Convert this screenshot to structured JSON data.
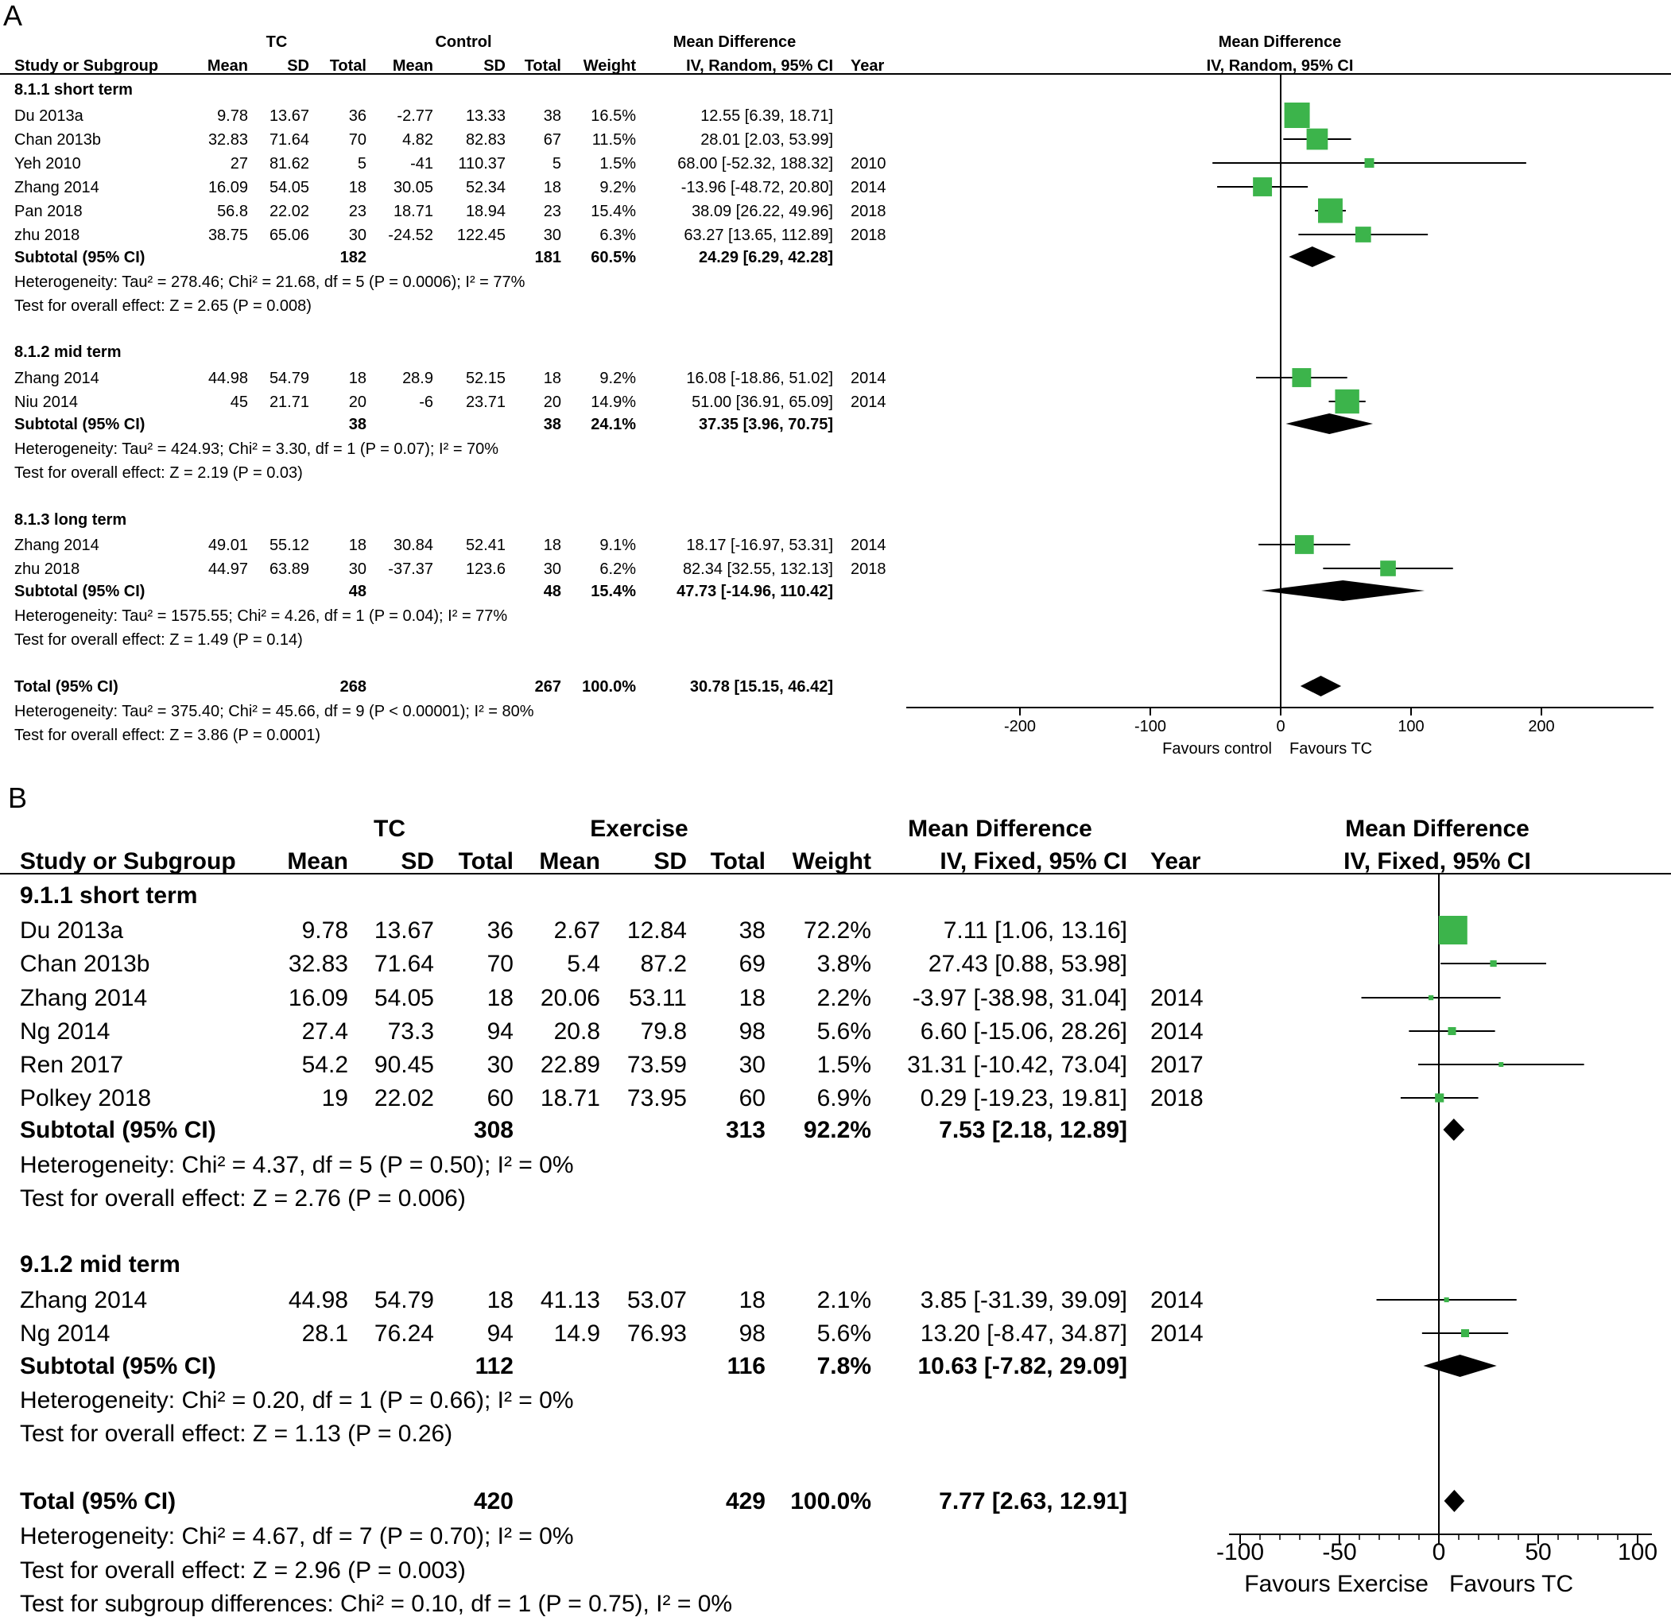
{
  "chart_data": [
    {
      "type": "forest",
      "panel_label": "A",
      "group1": "TC",
      "group2": "Control",
      "columns": [
        "Study or Subgroup",
        "Mean",
        "SD",
        "Total",
        "Mean",
        "SD",
        "Total",
        "Weight",
        "IV, Random, 95% CI",
        "Year"
      ],
      "effect_header": "Mean Difference",
      "effect_method": "IV, Random, 95% CI",
      "plot_header": "Mean Difference",
      "plot_method": "IV, Random, 95% CI",
      "xlim": [
        -288,
        285
      ],
      "ticks": [
        -200,
        -100,
        0,
        100,
        200
      ],
      "tick_labels": [
        "-200",
        "-100",
        "0",
        "100",
        "200"
      ],
      "favours_left": "Favours control",
      "favours_right": "Favours TC",
      "rows": [
        {
          "kind": "heading",
          "label": "8.1.1 short term"
        },
        {
          "kind": "study",
          "label": "Du 2013a",
          "cells": [
            "9.78",
            "13.67",
            "36",
            "-2.77",
            "13.33",
            "38",
            "16.5%",
            "12.55 [6.39, 18.71]",
            ""
          ],
          "md": 12.55,
          "lo": 6.39,
          "hi": 18.71,
          "weight": 16.5
        },
        {
          "kind": "study",
          "label": "Chan 2013b",
          "cells": [
            "32.83",
            "71.64",
            "70",
            "4.82",
            "82.83",
            "67",
            "11.5%",
            "28.01 [2.03, 53.99]",
            ""
          ],
          "md": 28.01,
          "lo": 2.03,
          "hi": 53.99,
          "weight": 11.5
        },
        {
          "kind": "study",
          "label": "Yeh 2010",
          "cells": [
            "27",
            "81.62",
            "5",
            "-41",
            "110.37",
            "5",
            "1.5%",
            "68.00 [-52.32, 188.32]",
            "2010"
          ],
          "md": 68.0,
          "lo": -52.32,
          "hi": 188.32,
          "weight": 1.5
        },
        {
          "kind": "study",
          "label": "Zhang 2014",
          "cells": [
            "16.09",
            "54.05",
            "18",
            "30.05",
            "52.34",
            "18",
            "9.2%",
            "-13.96 [-48.72, 20.80]",
            "2014"
          ],
          "md": -13.96,
          "lo": -48.72,
          "hi": 20.8,
          "weight": 9.2
        },
        {
          "kind": "study",
          "label": "Pan 2018",
          "cells": [
            "56.8",
            "22.02",
            "23",
            "18.71",
            "18.94",
            "23",
            "15.4%",
            "38.09 [26.22, 49.96]",
            "2018"
          ],
          "md": 38.09,
          "lo": 26.22,
          "hi": 49.96,
          "weight": 15.4
        },
        {
          "kind": "study",
          "label": "zhu 2018",
          "cells": [
            "38.75",
            "65.06",
            "30",
            "-24.52",
            "122.45",
            "30",
            "6.3%",
            "63.27 [13.65, 112.89]",
            "2018"
          ],
          "md": 63.27,
          "lo": 13.65,
          "hi": 112.89,
          "weight": 6.3
        },
        {
          "kind": "subtotal",
          "label": "Subtotal (95% CI)",
          "cells": [
            "",
            "",
            "182",
            "",
            "",
            "181",
            "60.5%",
            "24.29 [6.29, 42.28]",
            ""
          ],
          "md": 24.29,
          "lo": 6.29,
          "hi": 42.28
        },
        {
          "kind": "note",
          "label": "Heterogeneity: Tau² = 278.46; Chi² = 21.68, df = 5 (P = 0.0006); I² = 77%"
        },
        {
          "kind": "note",
          "label": "Test for overall effect: Z = 2.65 (P = 0.008)"
        },
        {
          "kind": "heading",
          "label": "8.1.2 mid term"
        },
        {
          "kind": "study",
          "label": "Zhang 2014",
          "cells": [
            "44.98",
            "54.79",
            "18",
            "28.9",
            "52.15",
            "18",
            "9.2%",
            "16.08 [-18.86, 51.02]",
            "2014"
          ],
          "md": 16.08,
          "lo": -18.86,
          "hi": 51.02,
          "weight": 9.2
        },
        {
          "kind": "study",
          "label": "Niu 2014",
          "cells": [
            "45",
            "21.71",
            "20",
            "-6",
            "23.71",
            "20",
            "14.9%",
            "51.00 [36.91, 65.09]",
            "2014"
          ],
          "md": 51.0,
          "lo": 36.91,
          "hi": 65.09,
          "weight": 14.9
        },
        {
          "kind": "subtotal",
          "label": "Subtotal (95% CI)",
          "cells": [
            "",
            "",
            "38",
            "",
            "",
            "38",
            "24.1%",
            "37.35 [3.96, 70.75]",
            ""
          ],
          "md": 37.35,
          "lo": 3.96,
          "hi": 70.75
        },
        {
          "kind": "note",
          "label": "Heterogeneity: Tau² = 424.93; Chi² = 3.30, df = 1 (P = 0.07); I² = 70%"
        },
        {
          "kind": "note",
          "label": "Test for overall effect: Z = 2.19 (P = 0.03)"
        },
        {
          "kind": "heading",
          "label": "8.1.3 long term"
        },
        {
          "kind": "study",
          "label": "Zhang 2014",
          "cells": [
            "49.01",
            "55.12",
            "18",
            "30.84",
            "52.41",
            "18",
            "9.1%",
            "18.17 [-16.97, 53.31]",
            "2014"
          ],
          "md": 18.17,
          "lo": -16.97,
          "hi": 53.31,
          "weight": 9.1
        },
        {
          "kind": "study",
          "label": "zhu 2018",
          "cells": [
            "44.97",
            "63.89",
            "30",
            "-37.37",
            "123.6",
            "30",
            "6.2%",
            "82.34 [32.55, 132.13]",
            "2018"
          ],
          "md": 82.34,
          "lo": 32.55,
          "hi": 132.13,
          "weight": 6.2
        },
        {
          "kind": "subtotal",
          "label": "Subtotal (95% CI)",
          "cells": [
            "",
            "",
            "48",
            "",
            "",
            "48",
            "15.4%",
            "47.73 [-14.96, 110.42]",
            ""
          ],
          "md": 47.73,
          "lo": -14.96,
          "hi": 110.42
        },
        {
          "kind": "note",
          "label": "Heterogeneity: Tau² = 1575.55; Chi² = 4.26, df = 1 (P = 0.04); I² = 77%"
        },
        {
          "kind": "note",
          "label": "Test for overall effect: Z = 1.49 (P = 0.14)"
        },
        {
          "kind": "total",
          "label": "Total (95% CI)",
          "cells": [
            "",
            "",
            "268",
            "",
            "",
            "267",
            "100.0%",
            "30.78 [15.15, 46.42]",
            ""
          ],
          "md": 30.78,
          "lo": 15.15,
          "hi": 46.42
        },
        {
          "kind": "note",
          "label": "Heterogeneity: Tau² = 375.40; Chi² = 45.66, df = 9 (P < 0.00001); I² = 80%"
        },
        {
          "kind": "note",
          "label": "Test for overall effect: Z = 3.86 (P = 0.0001)"
        }
      ]
    },
    {
      "type": "forest",
      "panel_label": "B",
      "group1": "TC",
      "group2": "Exercise",
      "columns": [
        "Study or Subgroup",
        "Mean",
        "SD",
        "Total",
        "Mean",
        "SD",
        "Total",
        "Weight",
        "IV, Fixed, 95% CI",
        "Year"
      ],
      "effect_header": "Mean Difference",
      "effect_method": "IV, Fixed, 95% CI",
      "plot_header": "Mean Difference",
      "plot_method": "IV, Fixed, 95% CI",
      "xlim": [
        -100,
        100
      ],
      "ticks": [
        -100,
        -50,
        0,
        50,
        100
      ],
      "tick_labels": [
        "-100",
        "-50",
        "0",
        "50",
        "100"
      ],
      "favours_left": "Favours Exercise",
      "favours_right": "Favours TC",
      "rows": [
        {
          "kind": "heading",
          "label": "9.1.1 short term"
        },
        {
          "kind": "study",
          "label": "Du 2013a",
          "cells": [
            "9.78",
            "13.67",
            "36",
            "2.67",
            "12.84",
            "38",
            "72.2%",
            "7.11 [1.06, 13.16]",
            ""
          ],
          "md": 7.11,
          "lo": 1.06,
          "hi": 13.16,
          "weight": 72.2
        },
        {
          "kind": "study",
          "label": "Chan 2013b",
          "cells": [
            "32.83",
            "71.64",
            "70",
            "5.4",
            "87.2",
            "69",
            "3.8%",
            "27.43 [0.88, 53.98]",
            ""
          ],
          "md": 27.43,
          "lo": 0.88,
          "hi": 53.98,
          "weight": 3.8
        },
        {
          "kind": "study",
          "label": "Zhang 2014",
          "cells": [
            "16.09",
            "54.05",
            "18",
            "20.06",
            "53.11",
            "18",
            "2.2%",
            "-3.97 [-38.98, 31.04]",
            "2014"
          ],
          "md": -3.97,
          "lo": -38.98,
          "hi": 31.04,
          "weight": 2.2
        },
        {
          "kind": "study",
          "label": "Ng 2014",
          "cells": [
            "27.4",
            "73.3",
            "94",
            "20.8",
            "79.8",
            "98",
            "5.6%",
            "6.60 [-15.06, 28.26]",
            "2014"
          ],
          "md": 6.6,
          "lo": -15.06,
          "hi": 28.26,
          "weight": 5.6
        },
        {
          "kind": "study",
          "label": "Ren 2017",
          "cells": [
            "54.2",
            "90.45",
            "30",
            "22.89",
            "73.59",
            "30",
            "1.5%",
            "31.31 [-10.42, 73.04]",
            "2017"
          ],
          "md": 31.31,
          "lo": -10.42,
          "hi": 73.04,
          "weight": 1.5
        },
        {
          "kind": "study",
          "label": "Polkey 2018",
          "cells": [
            "19",
            "22.02",
            "60",
            "18.71",
            "73.95",
            "60",
            "6.9%",
            "0.29 [-19.23, 19.81]",
            "2018"
          ],
          "md": 0.29,
          "lo": -19.23,
          "hi": 19.81,
          "weight": 6.9
        },
        {
          "kind": "subtotal",
          "label": "Subtotal (95% CI)",
          "cells": [
            "",
            "",
            "308",
            "",
            "",
            "313",
            "92.2%",
            "7.53 [2.18, 12.89]",
            ""
          ],
          "md": 7.53,
          "lo": 2.18,
          "hi": 12.89
        },
        {
          "kind": "note",
          "label": "Heterogeneity: Chi² = 4.37, df = 5 (P = 0.50); I² = 0%"
        },
        {
          "kind": "note",
          "label": "Test for overall effect: Z = 2.76 (P = 0.006)"
        },
        {
          "kind": "heading",
          "label": "9.1.2 mid term"
        },
        {
          "kind": "study",
          "label": "Zhang 2014",
          "cells": [
            "44.98",
            "54.79",
            "18",
            "41.13",
            "53.07",
            "18",
            "2.1%",
            "3.85 [-31.39, 39.09]",
            "2014"
          ],
          "md": 3.85,
          "lo": -31.39,
          "hi": 39.09,
          "weight": 2.1
        },
        {
          "kind": "study",
          "label": "Ng 2014",
          "cells": [
            "28.1",
            "76.24",
            "94",
            "14.9",
            "76.93",
            "98",
            "5.6%",
            "13.20 [-8.47, 34.87]",
            "2014"
          ],
          "md": 13.2,
          "lo": -8.47,
          "hi": 34.87,
          "weight": 5.6
        },
        {
          "kind": "subtotal",
          "label": "Subtotal (95% CI)",
          "cells": [
            "",
            "",
            "112",
            "",
            "",
            "116",
            "7.8%",
            "10.63 [-7.82, 29.09]",
            ""
          ],
          "md": 10.63,
          "lo": -7.82,
          "hi": 29.09
        },
        {
          "kind": "note",
          "label": "Heterogeneity: Chi² = 0.20, df = 1 (P = 0.66); I² = 0%"
        },
        {
          "kind": "note",
          "label": "Test for overall effect: Z = 1.13 (P = 0.26)"
        },
        {
          "kind": "total",
          "label": "Total (95% CI)",
          "cells": [
            "",
            "",
            "420",
            "",
            "",
            "429",
            "100.0%",
            "7.77 [2.63, 12.91]",
            ""
          ],
          "md": 7.77,
          "lo": 2.63,
          "hi": 12.91
        },
        {
          "kind": "note",
          "label": "Heterogeneity: Chi² = 4.67, df = 7 (P = 0.70); I² = 0%"
        },
        {
          "kind": "note",
          "label": "Test for overall effect: Z = 2.96 (P = 0.003)"
        },
        {
          "kind": "note",
          "label": "Test for subgroup differences: Chi² = 0.10, df = 1 (P = 0.75), I² = 0%"
        }
      ]
    }
  ],
  "colors": {
    "study_marker": "#3cb44b",
    "diamond": "#000000",
    "line": "#000000",
    "background": "#ffffff"
  }
}
